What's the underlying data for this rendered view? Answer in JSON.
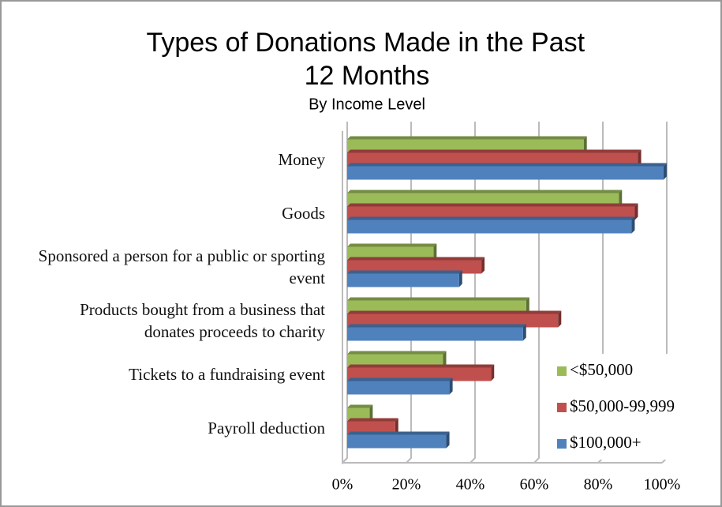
{
  "chart_data": {
    "type": "bar",
    "orientation": "horizontal",
    "title": "Types of Donations Made in the Past 12 Months",
    "subtitle": "By Income Level",
    "categories": [
      "Money",
      "Goods",
      "Sponsored a person for a public or sporting event",
      "Products bought from a business that donates proceeds to charity",
      "Tickets to a fundraising event",
      "Payroll deduction"
    ],
    "series": [
      {
        "name": "<$50,000",
        "color": "#9bbb59",
        "values": [
          74,
          85,
          27,
          56,
          30,
          7
        ]
      },
      {
        "name": "$50,000-99,999",
        "color": "#c0504d",
        "values": [
          91,
          90,
          42,
          66,
          45,
          15
        ]
      },
      {
        "name": "$100,000+",
        "color": "#4f81bd",
        "values": [
          99,
          89,
          35,
          55,
          32,
          31
        ]
      }
    ],
    "xlim": [
      0,
      100
    ],
    "xticks": [
      {
        "value": 0,
        "label": "0%"
      },
      {
        "value": 20,
        "label": "20%"
      },
      {
        "value": 40,
        "label": "40%"
      },
      {
        "value": 60,
        "label": "60%"
      },
      {
        "value": 80,
        "label": "80%"
      },
      {
        "value": 100,
        "label": "100%"
      }
    ],
    "grid": true,
    "legend": "lower right"
  }
}
